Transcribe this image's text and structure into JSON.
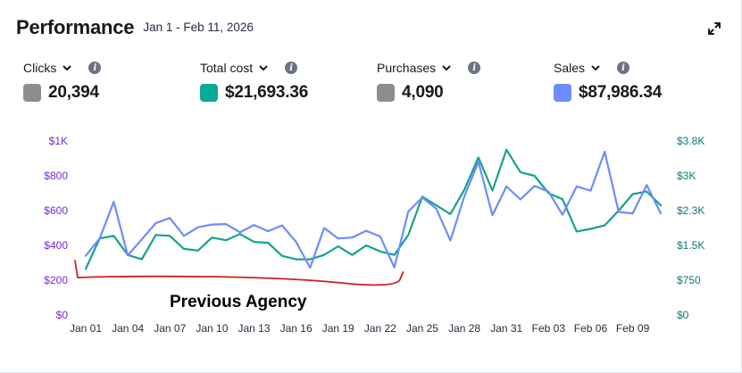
{
  "header": {
    "title": "Performance",
    "date_range": "Jan 1 - Feb 11, 2026"
  },
  "metrics": [
    {
      "label": "Clicks",
      "value": "20,394",
      "color": "#8d8d8d"
    },
    {
      "label": "Total cost",
      "value": "$21,693.36",
      "color": "#0aa89b"
    },
    {
      "label": "Purchases",
      "value": "4,090",
      "color": "#8d8d8d"
    },
    {
      "label": "Sales",
      "value": "$87,986.34",
      "color": "#6c8cff"
    }
  ],
  "icons": {
    "expand": "expand-icon",
    "chevron": "chevron-down-icon",
    "info": "info-icon",
    "info_glyph": "i"
  },
  "chart_data": {
    "type": "line",
    "x": [
      "Jan 01",
      "Jan 02",
      "Jan 03",
      "Jan 04",
      "Jan 05",
      "Jan 06",
      "Jan 07",
      "Jan 08",
      "Jan 09",
      "Jan 10",
      "Jan 11",
      "Jan 12",
      "Jan 13",
      "Jan 14",
      "Jan 15",
      "Jan 16",
      "Jan 17",
      "Jan 18",
      "Jan 19",
      "Jan 20",
      "Jan 21",
      "Jan 22",
      "Jan 23",
      "Jan 24",
      "Jan 25",
      "Jan 26",
      "Jan 27",
      "Jan 28",
      "Jan 29",
      "Jan 30",
      "Jan 31",
      "Feb 01",
      "Feb 02",
      "Feb 03",
      "Feb 04",
      "Feb 05",
      "Feb 06",
      "Feb 07",
      "Feb 08",
      "Feb 09",
      "Feb 10",
      "Feb 11"
    ],
    "x_tick_labels": [
      "Jan 01",
      "Jan 04",
      "Jan 07",
      "Jan 10",
      "Jan 13",
      "Jan 16",
      "Jan 19",
      "Jan 22",
      "Jan 25",
      "Jan 28",
      "Jan 31",
      "Feb 03",
      "Feb 06",
      "Feb 09"
    ],
    "x_tick_every": 3,
    "left_axis": {
      "ticks": [
        "$0",
        "$200",
        "$400",
        "$600",
        "$800",
        "$1K"
      ],
      "range": [
        0,
        1000
      ],
      "color": "#7b2ad6"
    },
    "right_axis": {
      "ticks": [
        "$0",
        "$750",
        "$1.5K",
        "$2.3K",
        "$3K",
        "$3.8K"
      ],
      "range": [
        0,
        3750
      ],
      "color": "#0c7b78"
    },
    "series": [
      {
        "name": "Total cost",
        "axis": "left",
        "color": "#14a38b",
        "values": [
          265,
          440,
          455,
          345,
          320,
          460,
          455,
          380,
          370,
          445,
          430,
          465,
          420,
          415,
          340,
          320,
          320,
          345,
          395,
          345,
          400,
          365,
          345,
          460,
          680,
          630,
          580,
          720,
          905,
          715,
          950,
          820,
          800,
          700,
          665,
          480,
          495,
          515,
          600,
          695,
          710,
          630
        ]
      },
      {
        "name": "Sales",
        "axis": "right",
        "color": "#6c8cff",
        "values": [
          1275,
          1650,
          2440,
          1285,
          1630,
          1980,
          2090,
          1705,
          1890,
          1950,
          1960,
          1780,
          1940,
          1805,
          1930,
          1575,
          1020,
          1875,
          1650,
          1670,
          1815,
          1690,
          1025,
          2230,
          2530,
          2290,
          1605,
          2560,
          3300,
          2150,
          2770,
          2490,
          2780,
          2660,
          2160,
          2770,
          2680,
          3520,
          2220,
          2190,
          2800,
          2190
        ]
      }
    ],
    "annotation": {
      "text": "Previous Agency",
      "x_start": "Jan 01",
      "x_end": "Jan 23",
      "color": "#d21e1e"
    },
    "grid": false
  }
}
